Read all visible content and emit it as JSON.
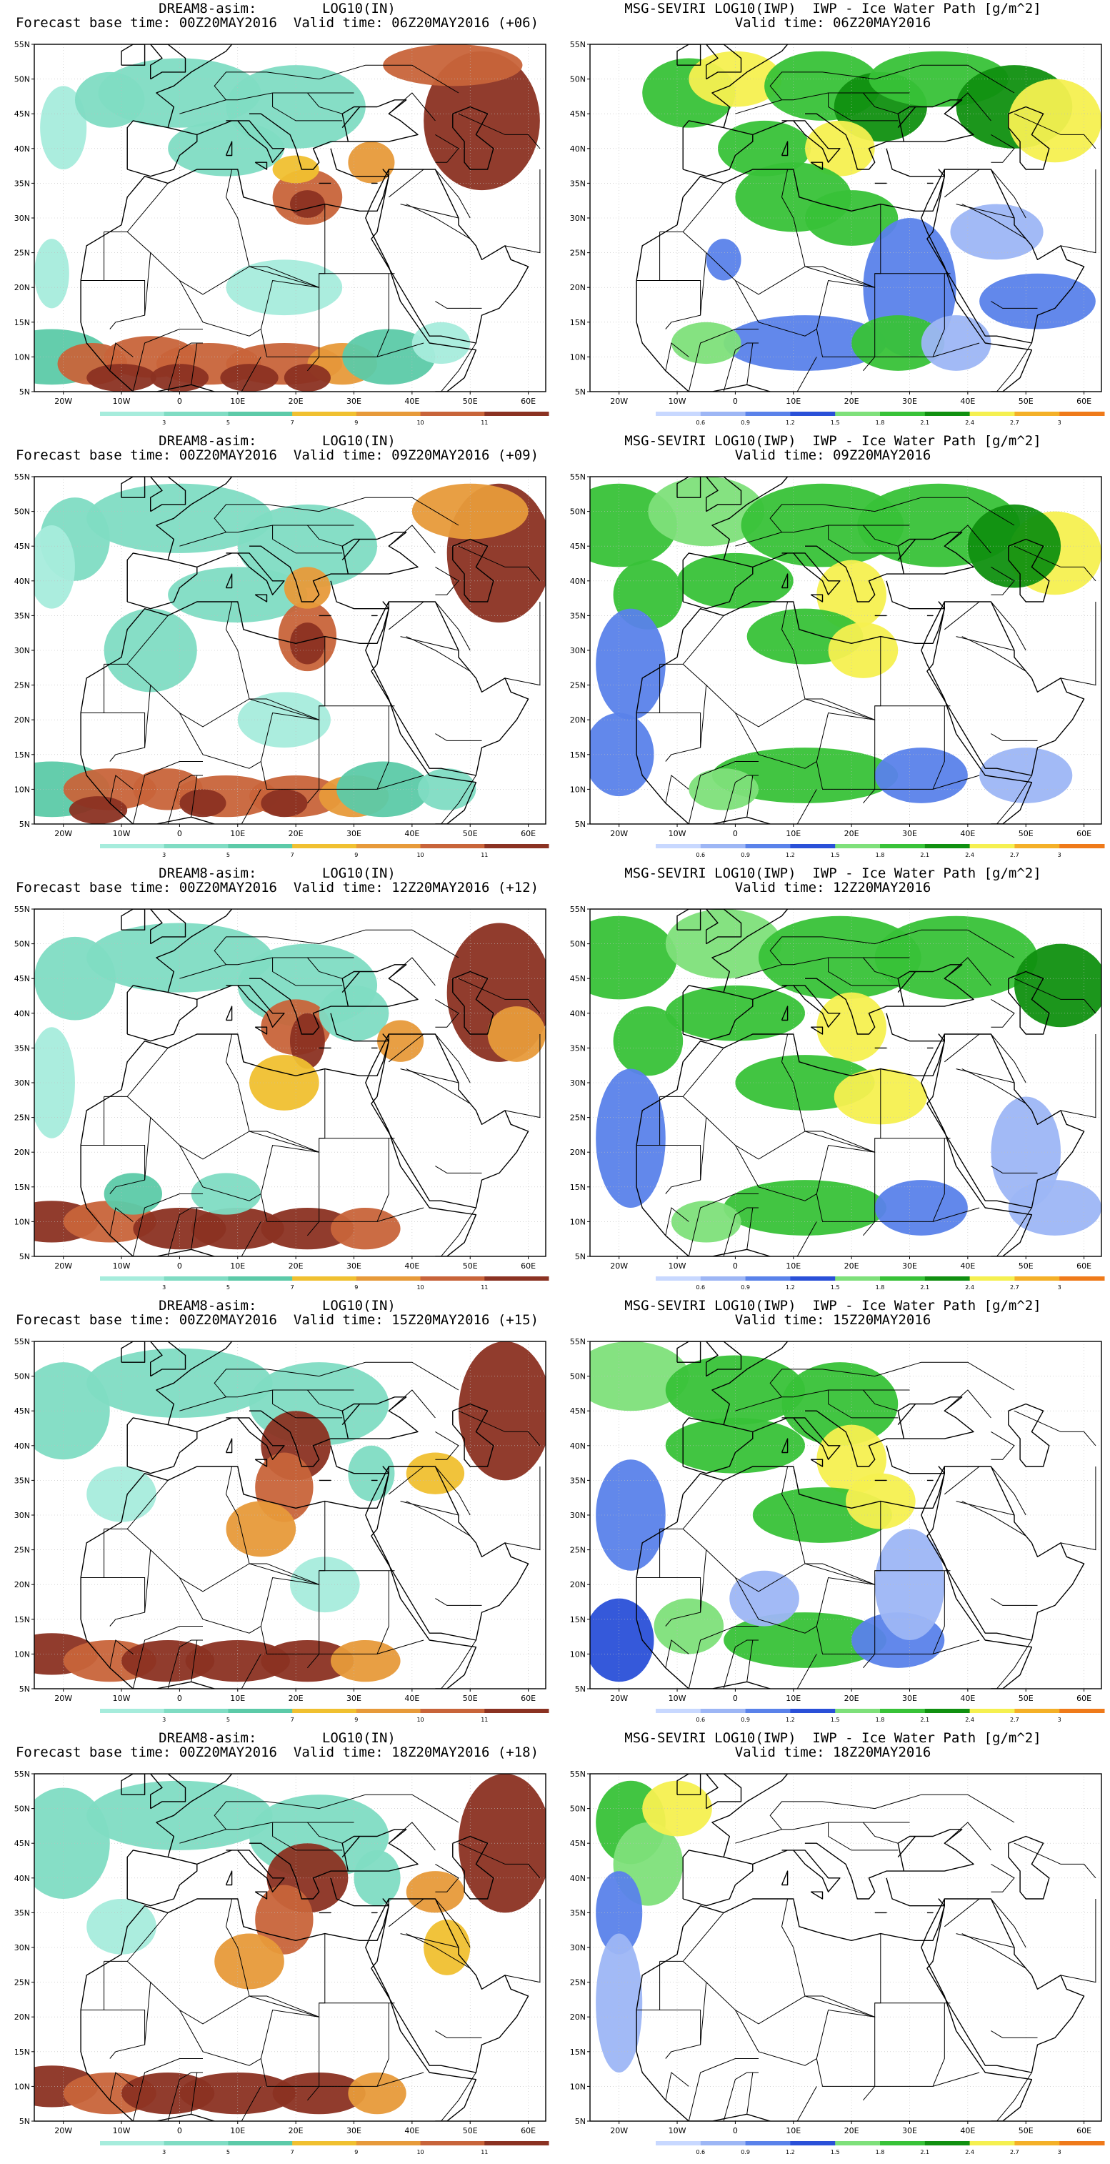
{
  "rows": [
    {
      "left": {
        "title1": "DREAM8-asim:        LOG10(IN)",
        "title2": "Forecast base time: 00Z20MAY2016  Valid time: 06Z20MAY2016 (+06)"
      },
      "right": {
        "title1": "MSG-SEVIRI LOG10(IWP)  IWP - Ice Water Path [g/m^2]",
        "title2": "Valid time: 06Z20MAY2016"
      }
    },
    {
      "left": {
        "title1": "DREAM8-asim:        LOG10(IN)",
        "title2": "Forecast base time: 00Z20MAY2016  Valid time: 09Z20MAY2016 (+09)"
      },
      "right": {
        "title1": "MSG-SEVIRI LOG10(IWP)  IWP - Ice Water Path [g/m^2]",
        "title2": "Valid time: 09Z20MAY2016"
      }
    },
    {
      "left": {
        "title1": "DREAM8-asim:        LOG10(IN)",
        "title2": "Forecast base time: 00Z20MAY2016  Valid time: 12Z20MAY2016 (+12)"
      },
      "right": {
        "title1": "MSG-SEVIRI LOG10(IWP)  IWP - Ice Water Path [g/m^2]",
        "title2": "Valid time: 12Z20MAY2016"
      }
    },
    {
      "left": {
        "title1": "DREAM8-asim:        LOG10(IN)",
        "title2": "Forecast base time: 00Z20MAY2016  Valid time: 15Z20MAY2016 (+15)"
      },
      "right": {
        "title1": "MSG-SEVIRI LOG10(IWP)  IWP - Ice Water Path [g/m^2]",
        "title2": "Valid time: 15Z20MAY2016"
      }
    },
    {
      "left": {
        "title1": "DREAM8-asim:        LOG10(IN)",
        "title2": "Forecast base time: 00Z20MAY2016  Valid time: 18Z20MAY2016 (+18)"
      },
      "right": {
        "title1": "MSG-SEVIRI LOG10(IWP)  IWP - Ice Water Path [g/m^2]",
        "title2": "Valid time: 18Z20MAY2016"
      }
    }
  ],
  "map": {
    "lat_labels": [
      "55N",
      "50N",
      "45N",
      "40N",
      "35N",
      "30N",
      "25N",
      "20N",
      "15N",
      "10N",
      "5N"
    ],
    "lon_labels": [
      "20W",
      "10W",
      "0",
      "10E",
      "20E",
      "30E",
      "40E",
      "50E",
      "60E"
    ]
  },
  "colorbar_in": {
    "labels": [
      "3",
      "5",
      "7",
      "9",
      "10",
      "11"
    ],
    "colors": [
      "#a6ecdc",
      "#7fdcc3",
      "#5ccaa8",
      "#f0c030",
      "#e79a3a",
      "#c8643a",
      "#8b3222"
    ]
  },
  "colorbar_iwp": {
    "labels": [
      "0.6",
      "0.9",
      "1.2",
      "1.5",
      "1.8",
      "2.1",
      "2.4",
      "2.7",
      "3"
    ],
    "colors": [
      "#c8d8ff",
      "#9db6f5",
      "#5a82ea",
      "#2a50d8",
      "#7ee07a",
      "#38c238",
      "#109010",
      "#f5f050",
      "#f4b028",
      "#ef7a1a"
    ]
  }
}
